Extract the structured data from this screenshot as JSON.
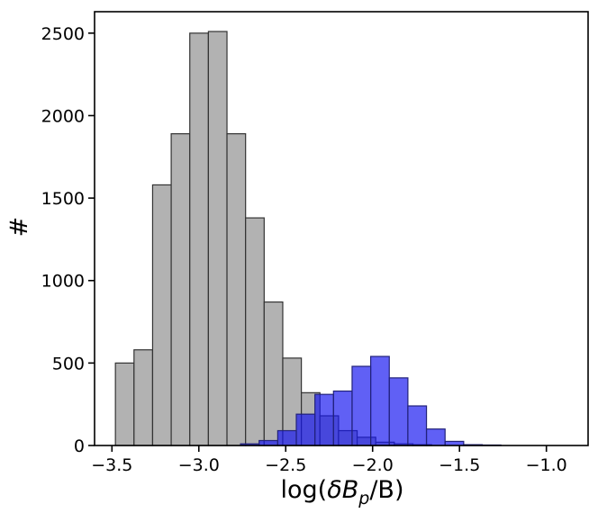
{
  "chart_data": {
    "type": "bar",
    "title": "",
    "xlabel_parts": {
      "prefix": "log(",
      "delta": "δ",
      "B": "B",
      "sub": "p",
      "suffix": "/B)"
    },
    "ylabel": "#",
    "xlim": [
      -3.6,
      -0.76
    ],
    "ylim": [
      0,
      2630
    ],
    "xticks": [
      -3.5,
      -3.0,
      -2.5,
      -2.0,
      -1.5,
      -1.0
    ],
    "xtick_labels": [
      "−3.5",
      "−3.0",
      "−2.5",
      "−2.0",
      "−1.5",
      "−1.0"
    ],
    "yticks": [
      0,
      500,
      1000,
      1500,
      2000,
      2500
    ],
    "ytick_labels": [
      "0",
      "500",
      "1000",
      "1500",
      "2000",
      "2500"
    ],
    "bin_width": 0.107,
    "series": [
      {
        "color": "#b2b2b2",
        "edgecolor": "#333333",
        "opacity": 1.0,
        "bin_starts": [
          -3.48,
          -3.373,
          -3.266,
          -3.159,
          -3.052,
          -2.945,
          -2.838,
          -2.731,
          -2.624,
          -2.517,
          -2.41,
          -2.303,
          -2.196,
          -2.089,
          -1.982,
          -1.875,
          -1.768
        ],
        "values": [
          500,
          580,
          1580,
          1890,
          2500,
          2510,
          1890,
          1380,
          870,
          530,
          320,
          180,
          90,
          50,
          20,
          10,
          5
        ]
      },
      {
        "color": "#1414f0",
        "edgecolor": "#22227a",
        "opacity": 0.68,
        "bin_starts": [
          -2.76,
          -2.653,
          -2.546,
          -2.439,
          -2.332,
          -2.225,
          -2.118,
          -2.011,
          -1.904,
          -1.797,
          -1.69,
          -1.583,
          -1.476,
          -1.369
        ],
        "values": [
          10,
          30,
          90,
          190,
          310,
          330,
          480,
          540,
          410,
          240,
          100,
          25,
          5,
          3
        ]
      }
    ],
    "grid": false,
    "legend": "none"
  }
}
